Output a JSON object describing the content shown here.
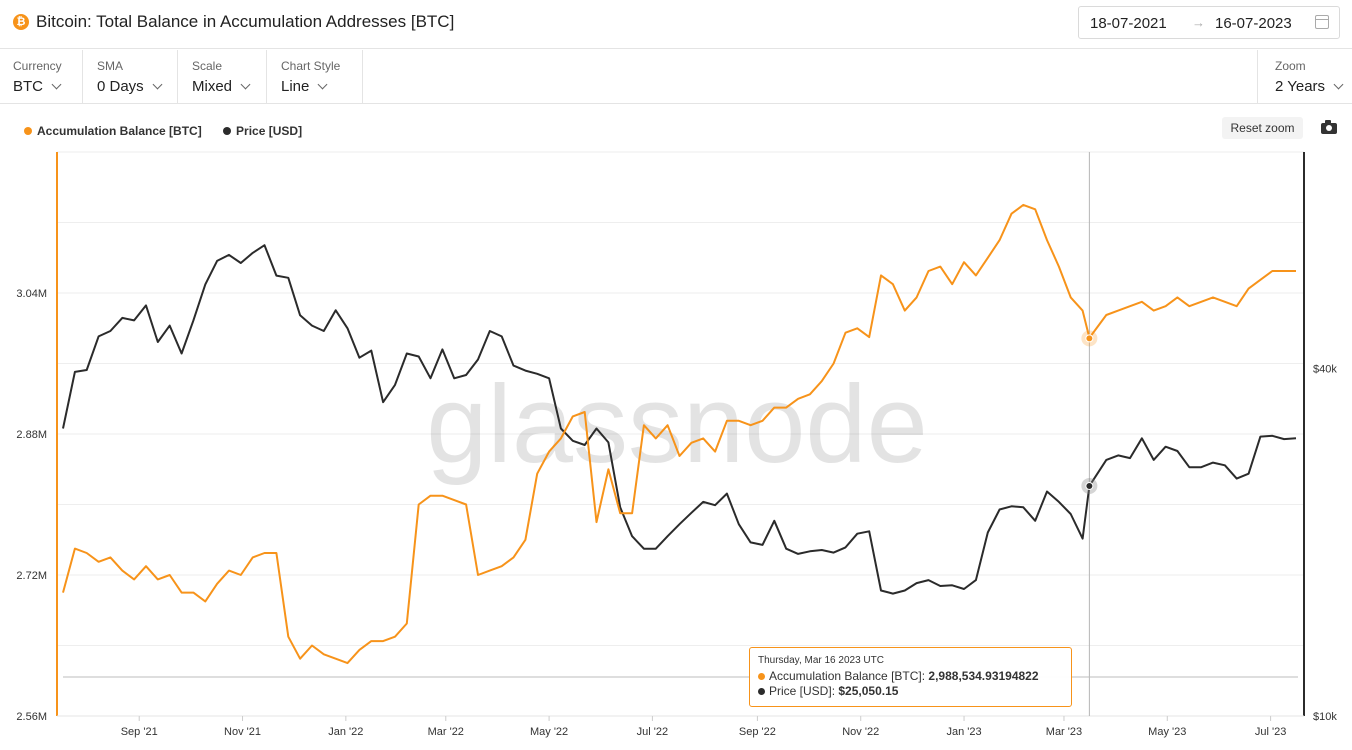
{
  "header": {
    "title": "Bitcoin: Total Balance in Accumulation Addresses [BTC]",
    "title_icon": "bitcoin-icon",
    "date_start": "18-07-2021",
    "date_arrow": "→",
    "date_end": "16-07-2023"
  },
  "controls": {
    "currency": {
      "label": "Currency",
      "value": "BTC"
    },
    "sma": {
      "label": "SMA",
      "value": "0 Days"
    },
    "scale": {
      "label": "Scale",
      "value": "Mixed"
    },
    "chart_style": {
      "label": "Chart Style",
      "value": "Line"
    },
    "zoom": {
      "label": "Zoom",
      "value": "2 Years"
    }
  },
  "toolbar": {
    "reset_zoom": "Reset zoom",
    "camera_icon": "camera-icon"
  },
  "watermark": "glassnode",
  "colors": {
    "accumulation": "#f7931a",
    "price": "#2b2b2b",
    "grid": "#eeeeee"
  },
  "tooltip": {
    "date": "Thursday, Mar 16 2023 UTC",
    "series1_label": "Accumulation Balance [BTC]",
    "series1_value": "2,988,534.93194822",
    "series2_label": "Price [USD]",
    "series2_value": "$25,050.15"
  },
  "chart_data": {
    "type": "line",
    "title": "Bitcoin: Total Balance in Accumulation Addresses [BTC]",
    "x_start": "2021-07-18",
    "x_end": "2023-07-16",
    "x_ticks": [
      {
        "date": "2021-09-01",
        "label": "Sep '21"
      },
      {
        "date": "2021-11-01",
        "label": "Nov '21"
      },
      {
        "date": "2022-01-01",
        "label": "Jan '22"
      },
      {
        "date": "2022-03-01",
        "label": "Mar '22"
      },
      {
        "date": "2022-05-01",
        "label": "May '22"
      },
      {
        "date": "2022-07-01",
        "label": "Jul '22"
      },
      {
        "date": "2022-09-01",
        "label": "Sep '22"
      },
      {
        "date": "2022-11-01",
        "label": "Nov '22"
      },
      {
        "date": "2023-01-01",
        "label": "Jan '23"
      },
      {
        "date": "2023-03-01",
        "label": "Mar '23"
      },
      {
        "date": "2023-05-01",
        "label": "May '23"
      },
      {
        "date": "2023-07-01",
        "label": "Jul '23"
      }
    ],
    "y_left": {
      "scale": "linear",
      "range": [
        2.56,
        3.2
      ],
      "unit": "M",
      "ticks": [
        {
          "value": 2.56,
          "label": "2.56M"
        },
        {
          "value": 2.72,
          "label": "2.72M"
        },
        {
          "value": 2.88,
          "label": "2.88M"
        },
        {
          "value": 3.04,
          "label": "3.04M"
        }
      ]
    },
    "y_right": {
      "scale": "log",
      "range": [
        10000,
        95000
      ],
      "ticks": [
        {
          "value": 10000,
          "label": "$10k"
        },
        {
          "value": 40000,
          "label": "$40k"
        }
      ]
    },
    "series": [
      {
        "name": "Accumulation Balance [BTC]",
        "axis": "left",
        "unit": "millions BTC",
        "points": [
          [
            "2021-07-18",
            2.7
          ],
          [
            "2021-07-25",
            2.75
          ],
          [
            "2021-08-01",
            2.745
          ],
          [
            "2021-08-08",
            2.735
          ],
          [
            "2021-08-15",
            2.74
          ],
          [
            "2021-08-22",
            2.725
          ],
          [
            "2021-08-29",
            2.715
          ],
          [
            "2021-09-05",
            2.73
          ],
          [
            "2021-09-12",
            2.715
          ],
          [
            "2021-09-19",
            2.72
          ],
          [
            "2021-09-26",
            2.7
          ],
          [
            "2021-10-03",
            2.7
          ],
          [
            "2021-10-10",
            2.69
          ],
          [
            "2021-10-17",
            2.71
          ],
          [
            "2021-10-24",
            2.725
          ],
          [
            "2021-10-31",
            2.72
          ],
          [
            "2021-11-07",
            2.74
          ],
          [
            "2021-11-14",
            2.745
          ],
          [
            "2021-11-21",
            2.745
          ],
          [
            "2021-11-28",
            2.65
          ],
          [
            "2021-12-05",
            2.625
          ],
          [
            "2021-12-12",
            2.64
          ],
          [
            "2021-12-19",
            2.63
          ],
          [
            "2021-12-26",
            2.625
          ],
          [
            "2022-01-02",
            2.62
          ],
          [
            "2022-01-09",
            2.635
          ],
          [
            "2022-01-16",
            2.645
          ],
          [
            "2022-01-23",
            2.645
          ],
          [
            "2022-01-30",
            2.65
          ],
          [
            "2022-02-06",
            2.665
          ],
          [
            "2022-02-13",
            2.8
          ],
          [
            "2022-02-20",
            2.81
          ],
          [
            "2022-02-27",
            2.81
          ],
          [
            "2022-03-06",
            2.805
          ],
          [
            "2022-03-13",
            2.8
          ],
          [
            "2022-03-20",
            2.72
          ],
          [
            "2022-03-27",
            2.725
          ],
          [
            "2022-04-03",
            2.73
          ],
          [
            "2022-04-10",
            2.74
          ],
          [
            "2022-04-17",
            2.76
          ],
          [
            "2022-04-24",
            2.835
          ],
          [
            "2022-05-01",
            2.86
          ],
          [
            "2022-05-08",
            2.875
          ],
          [
            "2022-05-15",
            2.9
          ],
          [
            "2022-05-22",
            2.905
          ],
          [
            "2022-05-29",
            2.78
          ],
          [
            "2022-06-05",
            2.84
          ],
          [
            "2022-06-12",
            2.79
          ],
          [
            "2022-06-19",
            2.79
          ],
          [
            "2022-06-26",
            2.89
          ],
          [
            "2022-07-03",
            2.875
          ],
          [
            "2022-07-10",
            2.89
          ],
          [
            "2022-07-17",
            2.855
          ],
          [
            "2022-07-24",
            2.87
          ],
          [
            "2022-07-31",
            2.875
          ],
          [
            "2022-08-07",
            2.86
          ],
          [
            "2022-08-14",
            2.895
          ],
          [
            "2022-08-21",
            2.895
          ],
          [
            "2022-08-28",
            2.89
          ],
          [
            "2022-09-04",
            2.895
          ],
          [
            "2022-09-11",
            2.91
          ],
          [
            "2022-09-18",
            2.91
          ],
          [
            "2022-09-25",
            2.92
          ],
          [
            "2022-10-02",
            2.925
          ],
          [
            "2022-10-09",
            2.94
          ],
          [
            "2022-10-16",
            2.96
          ],
          [
            "2022-10-23",
            2.995
          ],
          [
            "2022-10-30",
            3.0
          ],
          [
            "2022-11-06",
            2.99
          ],
          [
            "2022-11-13",
            3.06
          ],
          [
            "2022-11-20",
            3.05
          ],
          [
            "2022-11-27",
            3.02
          ],
          [
            "2022-12-04",
            3.035
          ],
          [
            "2022-12-11",
            3.065
          ],
          [
            "2022-12-18",
            3.07
          ],
          [
            "2022-12-25",
            3.05
          ],
          [
            "2023-01-01",
            3.075
          ],
          [
            "2023-01-08",
            3.06
          ],
          [
            "2023-01-15",
            3.08
          ],
          [
            "2023-01-22",
            3.1
          ],
          [
            "2023-01-29",
            3.13
          ],
          [
            "2023-02-05",
            3.14
          ],
          [
            "2023-02-12",
            3.135
          ],
          [
            "2023-02-19",
            3.1
          ],
          [
            "2023-02-26",
            3.07
          ],
          [
            "2023-03-05",
            3.035
          ],
          [
            "2023-03-12",
            3.02
          ],
          [
            "2023-03-16",
            2.989
          ],
          [
            "2023-03-26",
            3.015
          ],
          [
            "2023-04-02",
            3.02
          ],
          [
            "2023-04-09",
            3.025
          ],
          [
            "2023-04-16",
            3.03
          ],
          [
            "2023-04-23",
            3.02
          ],
          [
            "2023-04-30",
            3.025
          ],
          [
            "2023-05-07",
            3.035
          ],
          [
            "2023-05-14",
            3.025
          ],
          [
            "2023-05-21",
            3.03
          ],
          [
            "2023-05-28",
            3.035
          ],
          [
            "2023-06-04",
            3.03
          ],
          [
            "2023-06-11",
            3.025
          ],
          [
            "2023-06-18",
            3.045
          ],
          [
            "2023-06-25",
            3.055
          ],
          [
            "2023-07-02",
            3.065
          ],
          [
            "2023-07-09",
            3.065
          ],
          [
            "2023-07-16",
            3.065
          ]
        ]
      },
      {
        "name": "Price [USD]",
        "axis": "right",
        "unit": "USD",
        "points": [
          [
            "2021-07-18",
            31500
          ],
          [
            "2021-07-25",
            39500
          ],
          [
            "2021-08-01",
            39800
          ],
          [
            "2021-08-08",
            45500
          ],
          [
            "2021-08-15",
            46500
          ],
          [
            "2021-08-22",
            49000
          ],
          [
            "2021-08-29",
            48500
          ],
          [
            "2021-09-05",
            51500
          ],
          [
            "2021-09-12",
            44500
          ],
          [
            "2021-09-19",
            47500
          ],
          [
            "2021-09-26",
            42500
          ],
          [
            "2021-10-03",
            48500
          ],
          [
            "2021-10-10",
            56000
          ],
          [
            "2021-10-17",
            61500
          ],
          [
            "2021-10-24",
            63000
          ],
          [
            "2021-10-31",
            61000
          ],
          [
            "2021-11-07",
            63500
          ],
          [
            "2021-11-14",
            65500
          ],
          [
            "2021-11-21",
            58000
          ],
          [
            "2021-11-28",
            57500
          ],
          [
            "2021-12-05",
            49500
          ],
          [
            "2021-12-12",
            47500
          ],
          [
            "2021-12-19",
            46500
          ],
          [
            "2021-12-26",
            50500
          ],
          [
            "2022-01-02",
            47000
          ],
          [
            "2022-01-09",
            41800
          ],
          [
            "2022-01-16",
            43000
          ],
          [
            "2022-01-23",
            35000
          ],
          [
            "2022-01-30",
            37500
          ],
          [
            "2022-02-06",
            42500
          ],
          [
            "2022-02-13",
            42000
          ],
          [
            "2022-02-20",
            38500
          ],
          [
            "2022-02-27",
            43200
          ],
          [
            "2022-03-06",
            38500
          ],
          [
            "2022-03-13",
            39000
          ],
          [
            "2022-03-20",
            41500
          ],
          [
            "2022-03-27",
            46500
          ],
          [
            "2022-04-03",
            45500
          ],
          [
            "2022-04-10",
            40500
          ],
          [
            "2022-04-17",
            39700
          ],
          [
            "2022-04-24",
            39200
          ],
          [
            "2022-05-01",
            38500
          ],
          [
            "2022-05-08",
            31500
          ],
          [
            "2022-05-15",
            30000
          ],
          [
            "2022-05-22",
            29500
          ],
          [
            "2022-05-29",
            31500
          ],
          [
            "2022-06-05",
            29800
          ],
          [
            "2022-06-12",
            23000
          ],
          [
            "2022-06-19",
            20500
          ],
          [
            "2022-06-26",
            19500
          ],
          [
            "2022-07-03",
            19500
          ],
          [
            "2022-07-10",
            20500
          ],
          [
            "2022-07-17",
            21500
          ],
          [
            "2022-07-24",
            22500
          ],
          [
            "2022-07-31",
            23500
          ],
          [
            "2022-08-07",
            23200
          ],
          [
            "2022-08-14",
            24300
          ],
          [
            "2022-08-21",
            21500
          ],
          [
            "2022-08-28",
            20000
          ],
          [
            "2022-09-04",
            19800
          ],
          [
            "2022-09-11",
            21800
          ],
          [
            "2022-09-18",
            19500
          ],
          [
            "2022-09-25",
            19100
          ],
          [
            "2022-10-02",
            19300
          ],
          [
            "2022-10-09",
            19400
          ],
          [
            "2022-10-16",
            19200
          ],
          [
            "2022-10-23",
            19600
          ],
          [
            "2022-10-30",
            20700
          ],
          [
            "2022-11-06",
            20900
          ],
          [
            "2022-11-13",
            16500
          ],
          [
            "2022-11-20",
            16300
          ],
          [
            "2022-11-27",
            16500
          ],
          [
            "2022-12-04",
            17000
          ],
          [
            "2022-12-11",
            17200
          ],
          [
            "2022-12-18",
            16800
          ],
          [
            "2022-12-25",
            16850
          ],
          [
            "2023-01-01",
            16600
          ],
          [
            "2023-01-08",
            17200
          ],
          [
            "2023-01-15",
            20800
          ],
          [
            "2023-01-22",
            22800
          ],
          [
            "2023-01-29",
            23100
          ],
          [
            "2023-02-05",
            23000
          ],
          [
            "2023-02-12",
            21800
          ],
          [
            "2023-02-19",
            24500
          ],
          [
            "2023-02-26",
            23500
          ],
          [
            "2023-03-05",
            22400
          ],
          [
            "2023-03-12",
            20300
          ],
          [
            "2023-03-16",
            25050
          ],
          [
            "2023-03-26",
            27800
          ],
          [
            "2023-04-02",
            28300
          ],
          [
            "2023-04-09",
            28000
          ],
          [
            "2023-04-16",
            30300
          ],
          [
            "2023-04-23",
            27800
          ],
          [
            "2023-04-30",
            29300
          ],
          [
            "2023-05-07",
            28800
          ],
          [
            "2023-05-14",
            27000
          ],
          [
            "2023-05-21",
            27000
          ],
          [
            "2023-05-28",
            27500
          ],
          [
            "2023-06-04",
            27200
          ],
          [
            "2023-06-11",
            25800
          ],
          [
            "2023-06-18",
            26300
          ],
          [
            "2023-06-25",
            30500
          ],
          [
            "2023-07-02",
            30600
          ],
          [
            "2023-07-09",
            30200
          ],
          [
            "2023-07-16",
            30300
          ]
        ]
      }
    ],
    "highlight": {
      "date": "2023-03-16",
      "accumulation": 2.9885,
      "price": 25050.15
    }
  }
}
